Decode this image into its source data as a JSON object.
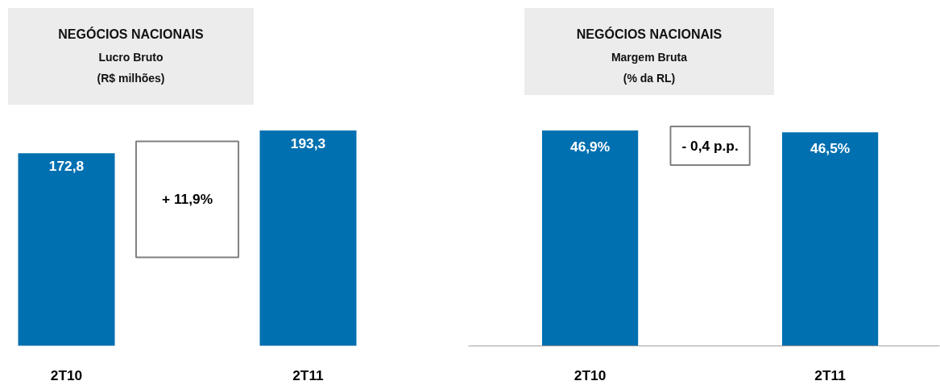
{
  "chart_data": [
    {
      "type": "bar",
      "title": "NEGÓCIOS NACIONAIS",
      "subtitle": "Lucro Bruto\n(R$ milhões)",
      "categories": [
        "2T10",
        "2T11"
      ],
      "values": [
        172.8,
        193.3
      ],
      "value_labels": [
        "172,8",
        "193,3"
      ],
      "color": "#0070b0",
      "annotations": [
        "+ 11,9%"
      ]
    },
    {
      "type": "bar",
      "title": "NEGÓCIOS NACIONAIS",
      "subtitle": "Margem Bruta\n(% da RL)",
      "categories": [
        "2T10",
        "2T11"
      ],
      "values": [
        46.9,
        46.5
      ],
      "value_labels": [
        "46,9%",
        "46,5%"
      ],
      "color": "#0070b0",
      "annotations": [
        "- 0,4 p.p."
      ]
    }
  ]
}
